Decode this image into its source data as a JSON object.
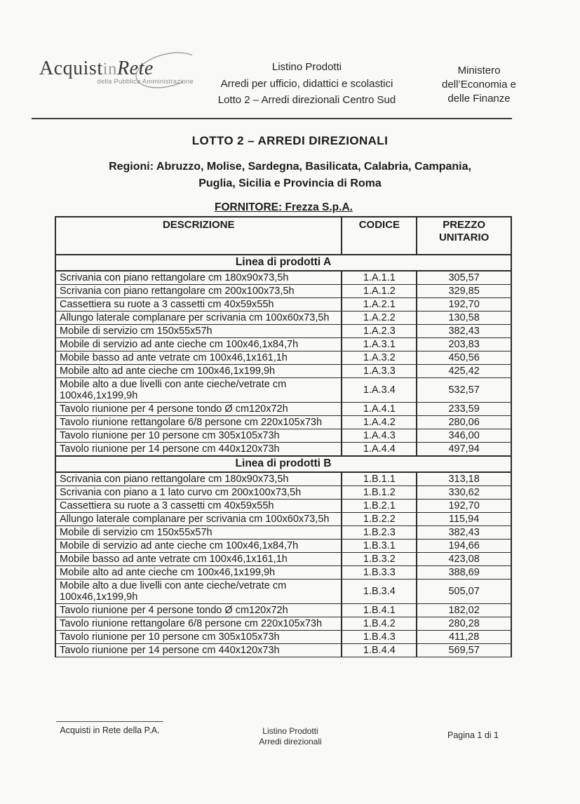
{
  "document": {
    "header": {
      "logo": {
        "text_main": "Acquist",
        "text_mid": "in",
        "text_end": "Rete",
        "subtitle": "della Pubblica Amministrazione"
      },
      "center_lines": [
        "Listino Prodotti",
        "Arredi per ufficio, didattici e scolastici",
        "Lotto 2 – Arredi direzionali Centro Sud"
      ],
      "ministry_lines": [
        "Ministero",
        "dell’Economia e",
        "delle Finanze"
      ]
    },
    "title": "LOTTO 2 – ARREDI DIREZIONALI",
    "regions_lines": [
      "Regioni: Abruzzo, Molise, Sardegna, Basilicata, Calabria, Campania,",
      "Puglia, Sicilia e Provincia di Roma"
    ],
    "supplier": "FORNITORE: Frezza S.p.A.",
    "table": {
      "columns": [
        "DESCRIZIONE",
        "CODICE",
        "PREZZO UNITARIO"
      ],
      "sections": [
        {
          "name": "Linea di prodotti A",
          "rows": [
            [
              "Scrivania con piano rettangolare cm 180x90x73,5h",
              "1.A.1.1",
              "305,57"
            ],
            [
              "Scrivania con piano rettangolare cm 200x100x73,5h",
              "1.A.1.2",
              "329,85"
            ],
            [
              "Cassettiera su ruote a 3 cassetti cm 40x59x55h",
              "1.A.2.1",
              "192,70"
            ],
            [
              "Allungo laterale complanare per scrivania cm 100x60x73,5h",
              "1.A.2.2",
              "130,58"
            ],
            [
              "Mobile di servizio cm 150x55x57h",
              "1.A.2.3",
              "382,43"
            ],
            [
              "Mobile di servizio ad ante cieche cm 100x46,1x84,7h",
              "1.A.3.1",
              "203,83"
            ],
            [
              "Mobile basso ad ante vetrate cm 100x46,1x161,1h",
              "1.A.3.2",
              "450,56"
            ],
            [
              "Mobile alto ad ante cieche cm 100x46,1x199,9h",
              "1.A.3.3",
              "425,42"
            ],
            [
              "Mobile alto a due livelli con ante cieche/vetrate cm 100x46,1x199,9h",
              "1.A.3.4",
              "532,57"
            ],
            [
              "Tavolo riunione per 4 persone tondo Ø cm120x72h",
              "1.A.4.1",
              "233,59"
            ],
            [
              "Tavolo riunione rettangolare 6/8 persone cm 220x105x73h",
              "1.A.4.2",
              "280,06"
            ],
            [
              "Tavolo riunione per 10 persone cm 305x105x73h",
              "1.A.4.3",
              "346,00"
            ],
            [
              "Tavolo riunione per 14 persone cm 440x120x73h",
              "1.A.4.4",
              "497,94"
            ]
          ]
        },
        {
          "name": "Linea di prodotti B",
          "rows": [
            [
              "Scrivania con piano rettangolare cm 180x90x73,5h",
              "1.B.1.1",
              "313,18"
            ],
            [
              "Scrivania con piano a 1 lato curvo cm 200x100x73,5h",
              "1.B.1.2",
              "330,62"
            ],
            [
              "Cassettiera su ruote a 3 cassetti cm 40x59x55h",
              "1.B.2.1",
              "192,70"
            ],
            [
              "Allungo laterale complanare per scrivania cm 100x60x73,5h",
              "1.B.2.2",
              "115,94"
            ],
            [
              "Mobile di servizio cm 150x55x57h",
              "1.B.2.3",
              "382,43"
            ],
            [
              "Mobile di servizio ad ante cieche cm 100x46,1x84,7h",
              "1.B.3.1",
              "194,66"
            ],
            [
              "Mobile basso ad ante vetrate cm 100x46,1x161,1h",
              "1.B.3.2",
              "423,08"
            ],
            [
              "Mobile alto ad ante cieche cm 100x46,1x199,9h",
              "1.B.3.3",
              "388,69"
            ],
            [
              "Mobile alto a due livelli con ante cieche/vetrate cm 100x46,1x199,9h",
              "1.B.3.4",
              "505,07"
            ],
            [
              "Tavolo riunione per 4 persone tondo Ø cm120x72h",
              "1.B.4.1",
              "182,02"
            ],
            [
              "Tavolo riunione rettangolare 6/8 persone cm 220x105x73h",
              "1.B.4.2",
              "280,28"
            ],
            [
              "Tavolo riunione per 10 persone cm 305x105x73h",
              "1.B.4.3",
              "411,28"
            ],
            [
              "Tavolo riunione per 14 persone cm 440x120x73h",
              "1.B.4.4",
              "569,57"
            ]
          ]
        }
      ]
    },
    "footer": {
      "left": "Acquisti in Rete della P.A.",
      "center_lines": [
        "Listino Prodotti",
        "Arredi direzionali"
      ],
      "right": "Pagina 1 di 1"
    },
    "colors": {
      "page_background": "#f9faf5",
      "text": "#1e1e1e",
      "border": "#2b2b2b"
    }
  }
}
